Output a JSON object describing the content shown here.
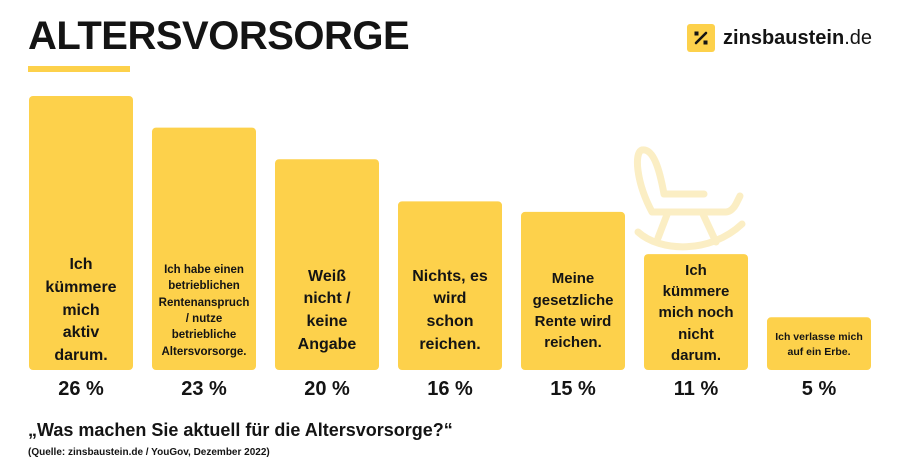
{
  "header": {
    "title": "ALTERSVORSORGE",
    "logo_name": "zinsbaustein",
    "logo_tld": ".de",
    "logo_icon": "percent-slash-icon"
  },
  "colors": {
    "bar": "#fdd14b",
    "text": "#141414",
    "chair_outline": "#fbeec4"
  },
  "chart_data": {
    "type": "bar",
    "categories": [
      "Ich kümmere mich aktiv darum.",
      "Ich habe einen betrieblichen Rentenanspruch / nutze betriebliche Altersvorsorge.",
      "Weiß nicht / keine Angabe",
      "Nichts, es wird schon reichen.",
      "Meine gesetzliche Rente wird reichen.",
      "Ich kümmere mich noch nicht darum.",
      "Ich verlasse mich auf ein Erbe."
    ],
    "values": [
      26,
      23,
      20,
      16,
      15,
      11,
      5
    ],
    "value_labels": [
      "26 %",
      "23 %",
      "20 %",
      "16 %",
      "15 %",
      "11 %",
      "5 %"
    ],
    "unit": "%",
    "ylim": [
      0,
      26
    ],
    "grid": false,
    "legend": "none"
  },
  "footer": {
    "question": "„Was machen Sie aktuell für die Altersvorsorge?“",
    "source": "(Quelle: zinsbaustein.de / YouGov, Dezember 2022)"
  }
}
